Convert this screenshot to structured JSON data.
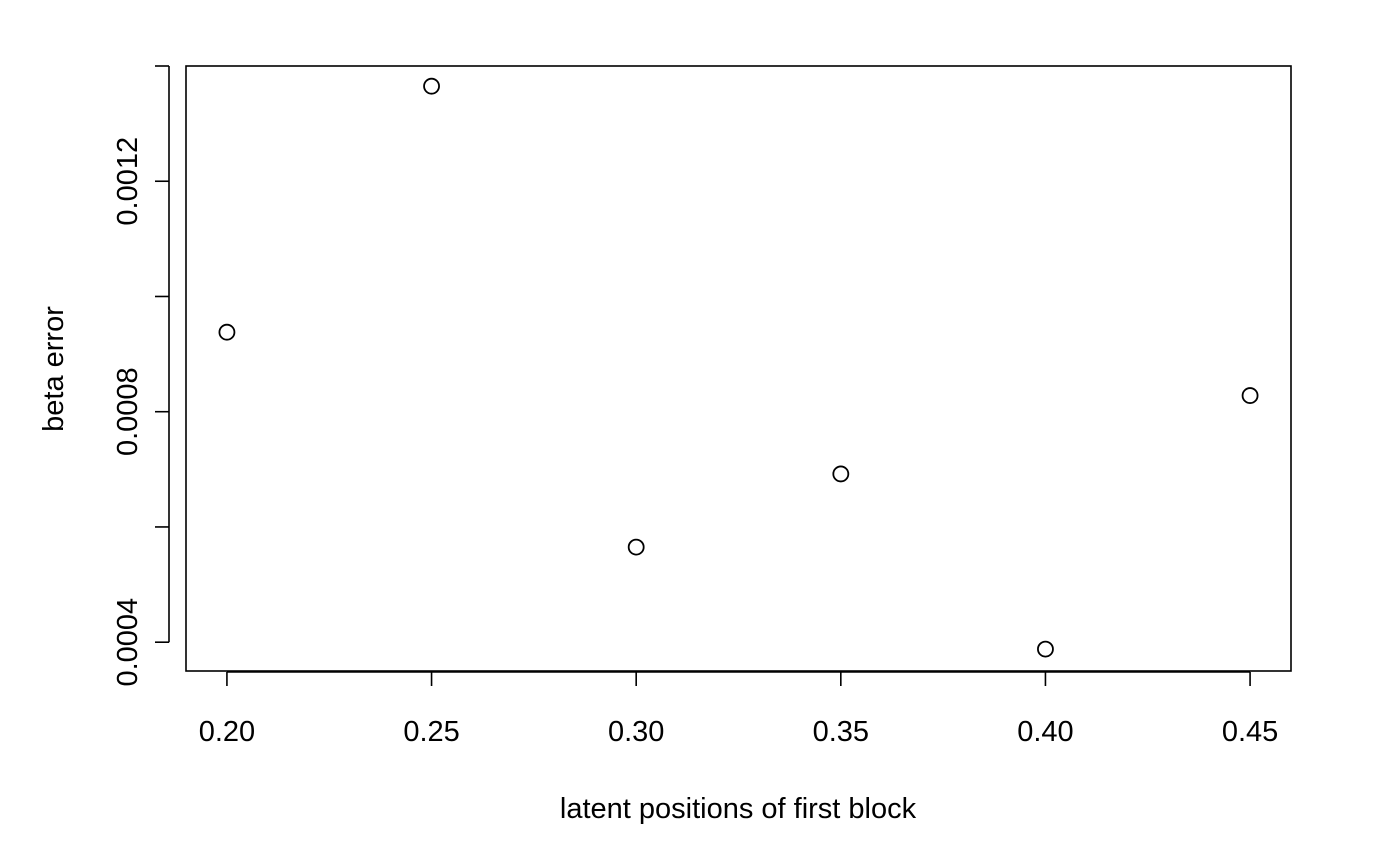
{
  "chart_data": {
    "type": "scatter",
    "title": "",
    "xlabel": "latent positions of first block",
    "ylabel": "beta error",
    "x": [
      0.2,
      0.25,
      0.3,
      0.35,
      0.4,
      0.45
    ],
    "y": [
      0.000938,
      0.001365,
      0.000565,
      0.000692,
      0.000388,
      0.000828
    ],
    "xlim": [
      0.19,
      0.46
    ],
    "ylim": [
      0.00035,
      0.0014
    ],
    "xticks": [
      0.2,
      0.25,
      0.3,
      0.35,
      0.4,
      0.45
    ],
    "xtick_labels": [
      "0.20",
      "0.25",
      "0.30",
      "0.35",
      "0.40",
      "0.45"
    ],
    "yticks": [
      0.0004,
      0.0006,
      0.0008,
      0.001,
      0.0012,
      0.0014
    ],
    "ytick_labels": [
      "0.0004",
      "",
      "0.0008",
      "",
      "0.0012",
      ""
    ],
    "marker": "open-circle",
    "grid": false,
    "legend": "none"
  }
}
